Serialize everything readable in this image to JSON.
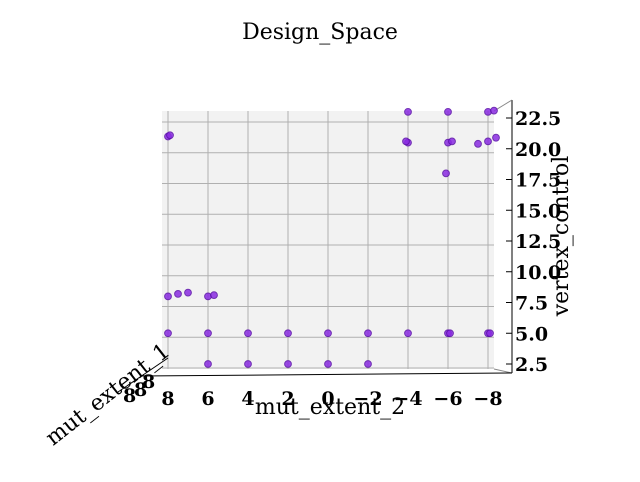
{
  "chart_data": {
    "type": "scatter",
    "projection": "3d",
    "title": "Design_Space",
    "xlabel": "mut_extent_2",
    "ylabel": "mut_extent_1",
    "zlabel": "vertex_control",
    "x_ticks": [
      "8",
      "6",
      "4",
      "2",
      "0",
      "−2",
      "−4",
      "−6",
      "−8"
    ],
    "x_tick_values": [
      8,
      6,
      4,
      2,
      0,
      -2,
      -4,
      -6,
      -8
    ],
    "z_ticks": [
      "2.5",
      "5.0",
      "7.5",
      "10.0",
      "12.5",
      "15.0",
      "17.5",
      "20.0",
      "22.5"
    ],
    "z_tick_values": [
      2.5,
      5.0,
      7.5,
      10.0,
      12.5,
      15.0,
      17.5,
      20.0,
      22.5
    ],
    "x_range": [
      9,
      -9
    ],
    "z_range": [
      1.8,
      24.0
    ],
    "grid": true,
    "marker_color": "#8a2be2",
    "points": [
      {
        "x": 8.0,
        "z": 21.0
      },
      {
        "x": 7.9,
        "z": 21.1
      },
      {
        "x": 8.0,
        "z": 8.0
      },
      {
        "x": 7.5,
        "z": 8.2
      },
      {
        "x": 7.0,
        "z": 8.3
      },
      {
        "x": 6.0,
        "z": 8.0
      },
      {
        "x": 5.7,
        "z": 8.1
      },
      {
        "x": 8.0,
        "z": 5.0
      },
      {
        "x": 6.0,
        "z": 5.0
      },
      {
        "x": 4.0,
        "z": 5.0
      },
      {
        "x": 2.0,
        "z": 5.0
      },
      {
        "x": 0.0,
        "z": 5.0
      },
      {
        "x": -2.0,
        "z": 5.0
      },
      {
        "x": -4.0,
        "z": 5.0
      },
      {
        "x": -6.0,
        "z": 5.0
      },
      {
        "x": -6.1,
        "z": 5.0
      },
      {
        "x": -8.0,
        "z": 5.0
      },
      {
        "x": -8.1,
        "z": 5.0
      },
      {
        "x": 6.0,
        "z": 2.5
      },
      {
        "x": 4.0,
        "z": 2.5
      },
      {
        "x": 2.0,
        "z": 2.5
      },
      {
        "x": 0.0,
        "z": 2.5
      },
      {
        "x": -2.0,
        "z": 2.5
      },
      {
        "x": -6.0,
        "z": 23.0
      },
      {
        "x": -8.0,
        "z": 23.0
      },
      {
        "x": -4.0,
        "z": 20.5
      },
      {
        "x": -3.9,
        "z": 20.6
      },
      {
        "x": -6.0,
        "z": 20.5
      },
      {
        "x": -6.2,
        "z": 20.6
      },
      {
        "x": -7.5,
        "z": 20.4
      },
      {
        "x": -8.0,
        "z": 20.6
      },
      {
        "x": -8.4,
        "z": 20.9
      },
      {
        "x": -5.9,
        "z": 18.0
      },
      {
        "x": -4.0,
        "z": 23.0
      },
      {
        "x": -8.3,
        "z": 23.1
      }
    ]
  }
}
